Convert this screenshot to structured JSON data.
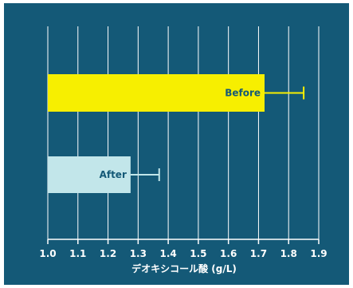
{
  "colors": {
    "background": "#145977",
    "gridline": "#ffffff",
    "axis": "#ffffff",
    "bar_before": "#f7ef00",
    "bar_after": "#c2e6ea",
    "bar_label_text": "#145977",
    "errorbar_before": "#f7ef00",
    "errorbar_after": "#c2e6ea"
  },
  "chart_data": {
    "type": "bar",
    "orientation": "horizontal",
    "xlabel": "デオキシコール酸 (g/L)",
    "ylabel": "",
    "xlim": [
      1.0,
      1.9
    ],
    "xticks": [
      "1.0",
      "1.1",
      "1.2",
      "1.3",
      "1.4",
      "1.5",
      "1.6",
      "1.7",
      "1.8",
      "1.9"
    ],
    "grid": true,
    "legend": "none",
    "categories": [
      "Before",
      "After"
    ],
    "values": [
      1.72,
      1.275
    ],
    "error_upper": [
      1.85,
      1.37
    ]
  }
}
